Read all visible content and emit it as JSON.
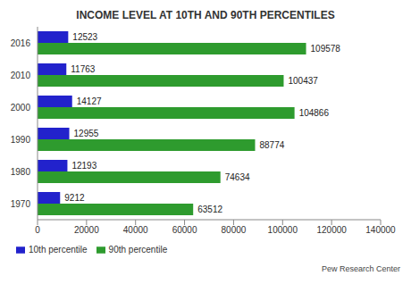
{
  "chart_data": {
    "type": "bar",
    "title": "INCOME LEVEL AT 10TH AND 90TH PERCENTILES",
    "orientation": "horizontal",
    "categories": [
      "2016",
      "2010",
      "2000",
      "1990",
      "1980",
      "1970"
    ],
    "series": [
      {
        "name": "10th percentile",
        "color": "#2222cc",
        "values": [
          12523,
          11763,
          14127,
          12955,
          12193,
          9212
        ]
      },
      {
        "name": "90th percentile",
        "color": "#2e9b2e",
        "values": [
          109578,
          100437,
          104866,
          88774,
          74634,
          63512
        ]
      }
    ],
    "xlim": [
      0,
      140000
    ],
    "xticks": [
      0,
      20000,
      40000,
      60000,
      80000,
      100000,
      120000,
      140000
    ],
    "data_labels": true,
    "grid": false,
    "legend": "bottom",
    "annotations": [
      "Pew Research Center"
    ]
  }
}
